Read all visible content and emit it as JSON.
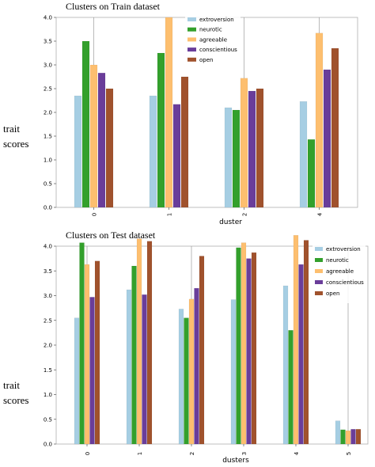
{
  "colors": {
    "extroversion": "#a6cee3",
    "neurotic": "#33a02c",
    "agreeable": "#fdbf6f",
    "conscientious": "#6a3d9a",
    "open": "#a0522d"
  },
  "side_label_top": [
    "trait",
    "scores"
  ],
  "side_label_bottom": [
    "trait",
    "scores"
  ],
  "chart_data": [
    {
      "type": "bar",
      "title": "Clusters on Train dataset",
      "xlabel": "duster",
      "ylabel": "",
      "ylim": [
        0,
        4.0
      ],
      "yticks": [
        "0.0",
        "0.5",
        "1.0",
        "1.5",
        "2.0",
        "2.5",
        "3.0",
        "3.5",
        "4.0"
      ],
      "categories": [
        "0",
        "1",
        "2",
        "4"
      ],
      "legend_position": "top-center",
      "grid": true,
      "series": [
        {
          "name": "extroversion",
          "values": [
            2.35,
            2.35,
            2.1,
            2.23
          ]
        },
        {
          "name": "neurotic",
          "values": [
            3.5,
            3.25,
            2.05,
            1.43
          ]
        },
        {
          "name": "agreeable",
          "values": [
            3.0,
            4.0,
            2.72,
            3.67
          ]
        },
        {
          "name": "conscientious",
          "values": [
            2.83,
            2.17,
            2.45,
            2.9
          ]
        },
        {
          "name": "open",
          "values": [
            2.5,
            2.75,
            2.5,
            3.35
          ]
        }
      ]
    },
    {
      "type": "bar",
      "title": "Clusters on Test dataset",
      "xlabel": "dusters",
      "ylabel": "",
      "ylim": [
        0,
        4.0
      ],
      "yticks": [
        "0.0",
        "0.5",
        "1.0",
        "1.5",
        "2.0",
        "2.5",
        "3.0",
        "3.5",
        "4.0"
      ],
      "categories": [
        "0",
        "1",
        "2",
        "3",
        "4",
        "5"
      ],
      "legend_position": "top-right",
      "grid": true,
      "series": [
        {
          "name": "extroversion",
          "values": [
            2.55,
            3.12,
            2.73,
            2.92,
            3.2,
            0.47
          ]
        },
        {
          "name": "neurotic",
          "values": [
            4.07,
            3.6,
            2.55,
            3.97,
            2.3,
            0.29
          ]
        },
        {
          "name": "agreeable",
          "values": [
            3.63,
            4.15,
            2.93,
            4.07,
            4.22,
            0.27
          ]
        },
        {
          "name": "conscientious",
          "values": [
            2.97,
            3.02,
            3.15,
            3.75,
            3.63,
            0.3
          ]
        },
        {
          "name": "open",
          "values": [
            3.7,
            4.1,
            3.8,
            3.87,
            4.12,
            0.3
          ]
        }
      ]
    }
  ]
}
